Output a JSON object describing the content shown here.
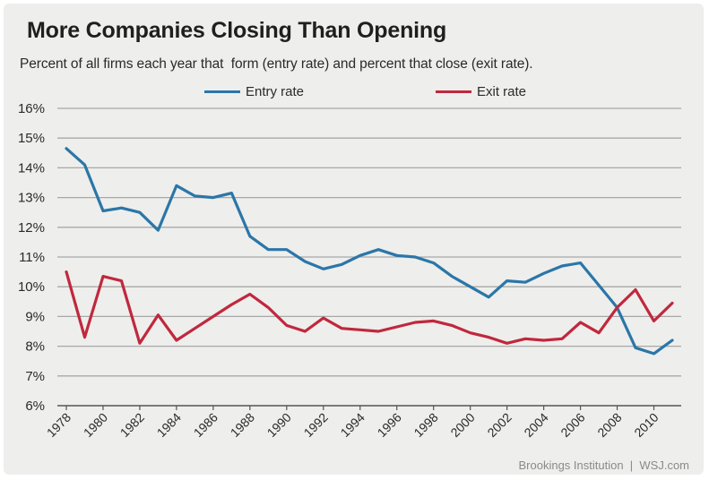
{
  "chart_data": {
    "type": "line",
    "title": "More Companies Closing Than Opening",
    "subtitle": "Percent of all firms each year that  form (entry rate) and percent that close (exit rate).",
    "xlabel": "",
    "ylabel": "",
    "x": [
      1978,
      1979,
      1980,
      1981,
      1982,
      1983,
      1984,
      1985,
      1986,
      1987,
      1988,
      1989,
      1990,
      1991,
      1992,
      1993,
      1994,
      1995,
      1996,
      1997,
      1998,
      1999,
      2000,
      2001,
      2002,
      2003,
      2004,
      2005,
      2006,
      2007,
      2008,
      2009,
      2010,
      2011
    ],
    "x_tick_labels": [
      "1978",
      "1980",
      "1982",
      "1984",
      "1986",
      "1988",
      "1990",
      "1992",
      "1994",
      "1996",
      "1998",
      "2000",
      "2002",
      "2004",
      "2006",
      "2008",
      "2010"
    ],
    "ylim": [
      6,
      16
    ],
    "y_tick_labels": [
      "6%",
      "7%",
      "8%",
      "9%",
      "10%",
      "11%",
      "12%",
      "13%",
      "14%",
      "15%",
      "16%"
    ],
    "grid": "horizontal",
    "legend_position": "top",
    "series": [
      {
        "name": "Entry rate",
        "color": "#2b76a8",
        "values": [
          14.65,
          14.1,
          12.55,
          12.65,
          12.5,
          11.9,
          13.4,
          13.05,
          13.0,
          13.15,
          11.7,
          11.25,
          11.25,
          10.85,
          10.6,
          10.75,
          11.05,
          11.25,
          11.05,
          11.0,
          10.8,
          10.35,
          10.0,
          9.65,
          10.2,
          10.15,
          10.45,
          10.7,
          10.8,
          10.05,
          9.3,
          7.95,
          7.75,
          8.2
        ]
      },
      {
        "name": "Exit rate",
        "color": "#c0283d",
        "values": [
          10.5,
          8.3,
          10.35,
          10.2,
          8.1,
          9.05,
          8.2,
          8.6,
          9.0,
          9.4,
          9.75,
          9.3,
          8.7,
          8.5,
          8.95,
          8.6,
          8.55,
          8.5,
          8.65,
          8.8,
          8.85,
          8.7,
          8.45,
          8.3,
          8.1,
          8.25,
          8.2,
          8.25,
          8.8,
          8.45,
          9.3,
          9.9,
          8.85,
          9.45
        ]
      }
    ]
  },
  "source": "Brookings Institution  |  WSJ.com"
}
